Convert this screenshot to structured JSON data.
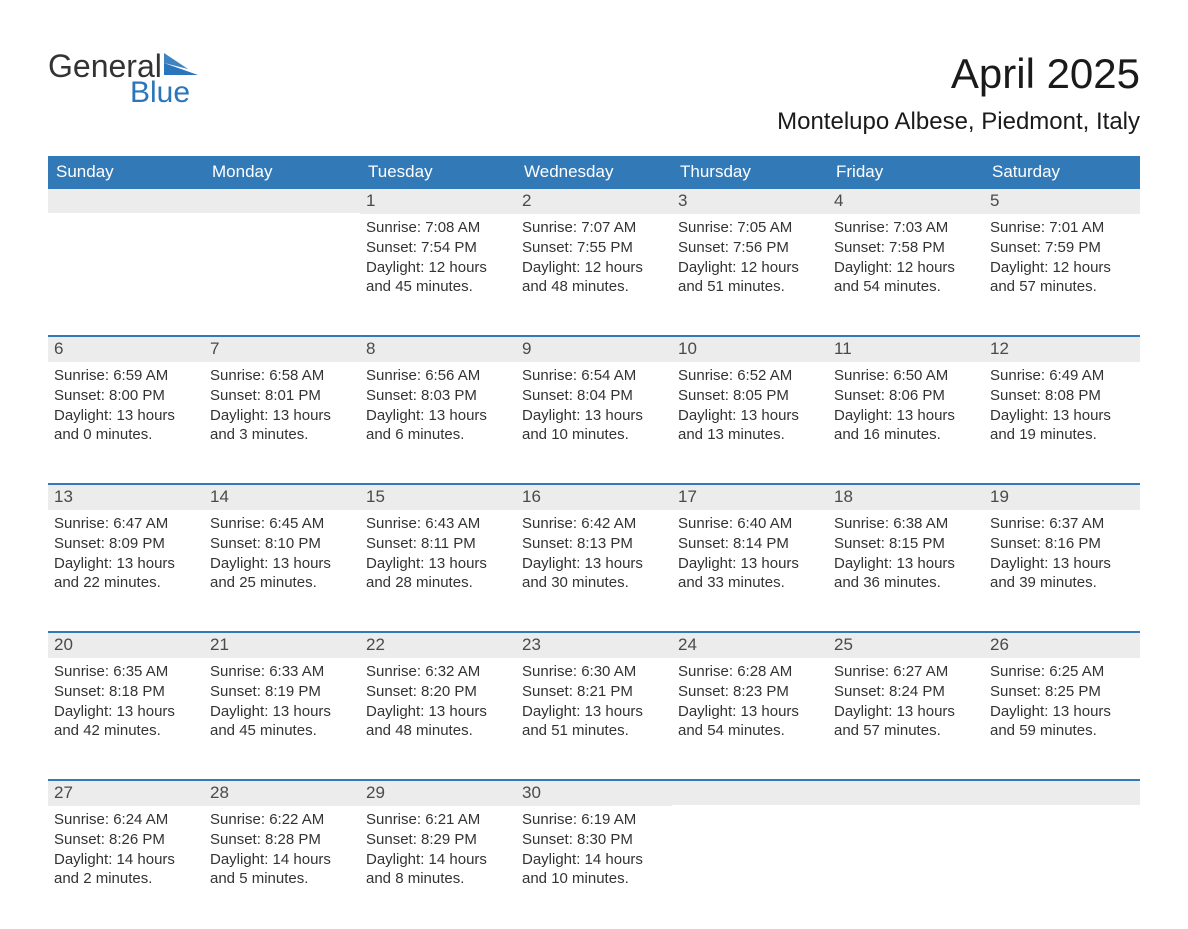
{
  "logo": {
    "word1": "General",
    "word2": "Blue",
    "mark_color": "#2a75bb"
  },
  "title": "April 2025",
  "subtitle": "Montelupo Albese, Piedmont, Italy",
  "accent_color": "#3279b7",
  "daynum_bg": "#ececec",
  "text_color": "#333333",
  "days_of_week": [
    "Sunday",
    "Monday",
    "Tuesday",
    "Wednesday",
    "Thursday",
    "Friday",
    "Saturday"
  ],
  "weeks": [
    [
      null,
      null,
      {
        "n": "1",
        "sr": "Sunrise: 7:08 AM",
        "ss": "Sunset: 7:54 PM",
        "d1": "Daylight: 12 hours",
        "d2": "and 45 minutes."
      },
      {
        "n": "2",
        "sr": "Sunrise: 7:07 AM",
        "ss": "Sunset: 7:55 PM",
        "d1": "Daylight: 12 hours",
        "d2": "and 48 minutes."
      },
      {
        "n": "3",
        "sr": "Sunrise: 7:05 AM",
        "ss": "Sunset: 7:56 PM",
        "d1": "Daylight: 12 hours",
        "d2": "and 51 minutes."
      },
      {
        "n": "4",
        "sr": "Sunrise: 7:03 AM",
        "ss": "Sunset: 7:58 PM",
        "d1": "Daylight: 12 hours",
        "d2": "and 54 minutes."
      },
      {
        "n": "5",
        "sr": "Sunrise: 7:01 AM",
        "ss": "Sunset: 7:59 PM",
        "d1": "Daylight: 12 hours",
        "d2": "and 57 minutes."
      }
    ],
    [
      {
        "n": "6",
        "sr": "Sunrise: 6:59 AM",
        "ss": "Sunset: 8:00 PM",
        "d1": "Daylight: 13 hours",
        "d2": "and 0 minutes."
      },
      {
        "n": "7",
        "sr": "Sunrise: 6:58 AM",
        "ss": "Sunset: 8:01 PM",
        "d1": "Daylight: 13 hours",
        "d2": "and 3 minutes."
      },
      {
        "n": "8",
        "sr": "Sunrise: 6:56 AM",
        "ss": "Sunset: 8:03 PM",
        "d1": "Daylight: 13 hours",
        "d2": "and 6 minutes."
      },
      {
        "n": "9",
        "sr": "Sunrise: 6:54 AM",
        "ss": "Sunset: 8:04 PM",
        "d1": "Daylight: 13 hours",
        "d2": "and 10 minutes."
      },
      {
        "n": "10",
        "sr": "Sunrise: 6:52 AM",
        "ss": "Sunset: 8:05 PM",
        "d1": "Daylight: 13 hours",
        "d2": "and 13 minutes."
      },
      {
        "n": "11",
        "sr": "Sunrise: 6:50 AM",
        "ss": "Sunset: 8:06 PM",
        "d1": "Daylight: 13 hours",
        "d2": "and 16 minutes."
      },
      {
        "n": "12",
        "sr": "Sunrise: 6:49 AM",
        "ss": "Sunset: 8:08 PM",
        "d1": "Daylight: 13 hours",
        "d2": "and 19 minutes."
      }
    ],
    [
      {
        "n": "13",
        "sr": "Sunrise: 6:47 AM",
        "ss": "Sunset: 8:09 PM",
        "d1": "Daylight: 13 hours",
        "d2": "and 22 minutes."
      },
      {
        "n": "14",
        "sr": "Sunrise: 6:45 AM",
        "ss": "Sunset: 8:10 PM",
        "d1": "Daylight: 13 hours",
        "d2": "and 25 minutes."
      },
      {
        "n": "15",
        "sr": "Sunrise: 6:43 AM",
        "ss": "Sunset: 8:11 PM",
        "d1": "Daylight: 13 hours",
        "d2": "and 28 minutes."
      },
      {
        "n": "16",
        "sr": "Sunrise: 6:42 AM",
        "ss": "Sunset: 8:13 PM",
        "d1": "Daylight: 13 hours",
        "d2": "and 30 minutes."
      },
      {
        "n": "17",
        "sr": "Sunrise: 6:40 AM",
        "ss": "Sunset: 8:14 PM",
        "d1": "Daylight: 13 hours",
        "d2": "and 33 minutes."
      },
      {
        "n": "18",
        "sr": "Sunrise: 6:38 AM",
        "ss": "Sunset: 8:15 PM",
        "d1": "Daylight: 13 hours",
        "d2": "and 36 minutes."
      },
      {
        "n": "19",
        "sr": "Sunrise: 6:37 AM",
        "ss": "Sunset: 8:16 PM",
        "d1": "Daylight: 13 hours",
        "d2": "and 39 minutes."
      }
    ],
    [
      {
        "n": "20",
        "sr": "Sunrise: 6:35 AM",
        "ss": "Sunset: 8:18 PM",
        "d1": "Daylight: 13 hours",
        "d2": "and 42 minutes."
      },
      {
        "n": "21",
        "sr": "Sunrise: 6:33 AM",
        "ss": "Sunset: 8:19 PM",
        "d1": "Daylight: 13 hours",
        "d2": "and 45 minutes."
      },
      {
        "n": "22",
        "sr": "Sunrise: 6:32 AM",
        "ss": "Sunset: 8:20 PM",
        "d1": "Daylight: 13 hours",
        "d2": "and 48 minutes."
      },
      {
        "n": "23",
        "sr": "Sunrise: 6:30 AM",
        "ss": "Sunset: 8:21 PM",
        "d1": "Daylight: 13 hours",
        "d2": "and 51 minutes."
      },
      {
        "n": "24",
        "sr": "Sunrise: 6:28 AM",
        "ss": "Sunset: 8:23 PM",
        "d1": "Daylight: 13 hours",
        "d2": "and 54 minutes."
      },
      {
        "n": "25",
        "sr": "Sunrise: 6:27 AM",
        "ss": "Sunset: 8:24 PM",
        "d1": "Daylight: 13 hours",
        "d2": "and 57 minutes."
      },
      {
        "n": "26",
        "sr": "Sunrise: 6:25 AM",
        "ss": "Sunset: 8:25 PM",
        "d1": "Daylight: 13 hours",
        "d2": "and 59 minutes."
      }
    ],
    [
      {
        "n": "27",
        "sr": "Sunrise: 6:24 AM",
        "ss": "Sunset: 8:26 PM",
        "d1": "Daylight: 14 hours",
        "d2": "and 2 minutes."
      },
      {
        "n": "28",
        "sr": "Sunrise: 6:22 AM",
        "ss": "Sunset: 8:28 PM",
        "d1": "Daylight: 14 hours",
        "d2": "and 5 minutes."
      },
      {
        "n": "29",
        "sr": "Sunrise: 6:21 AM",
        "ss": "Sunset: 8:29 PM",
        "d1": "Daylight: 14 hours",
        "d2": "and 8 minutes."
      },
      {
        "n": "30",
        "sr": "Sunrise: 6:19 AM",
        "ss": "Sunset: 8:30 PM",
        "d1": "Daylight: 14 hours",
        "d2": "and 10 minutes."
      },
      null,
      null,
      null
    ]
  ]
}
